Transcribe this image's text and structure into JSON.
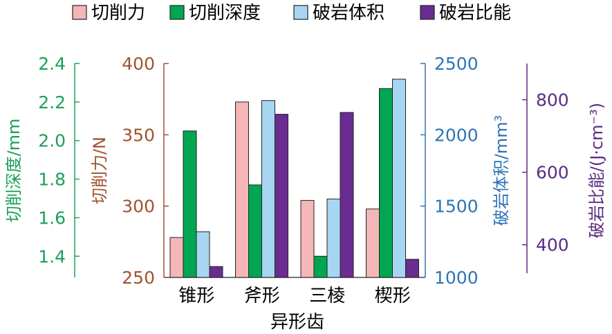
{
  "chart_data": {
    "type": "bar",
    "xlabel": "异形齿",
    "categories": [
      "锥形",
      "斧形",
      "三棱",
      "楔形"
    ],
    "legend_position": "top",
    "grid": false,
    "series": [
      {
        "name": "切削力",
        "axis": "force",
        "color": "#f4b6b6",
        "values": [
          278,
          373,
          304,
          298
        ]
      },
      {
        "name": "切削深度",
        "axis": "depth",
        "color": "#00a651",
        "values": [
          2.05,
          1.77,
          1.4,
          2.27
        ]
      },
      {
        "name": "破岩体积",
        "axis": "volume",
        "color": "#a6d6f2",
        "values": [
          1320,
          2240,
          1550,
          2390
        ]
      },
      {
        "name": "破岩比能",
        "axis": "energy",
        "color": "#6a2c91",
        "values": [
          340,
          760,
          765,
          360
        ]
      }
    ],
    "axes": {
      "depth": {
        "label": "切削深度/mm",
        "color": "#1aa05a",
        "ylim": [
          1.29,
          2.4
        ],
        "ticks": [
          "1.4",
          "1.6",
          "1.8",
          "2.0",
          "2.2",
          "2.4"
        ]
      },
      "force": {
        "label": "切削力/N",
        "color": "#a0522d",
        "ylim": [
          250,
          400
        ],
        "ticks": [
          "250",
          "300",
          "350",
          "400"
        ]
      },
      "volume": {
        "label": "破岩体积/mm³",
        "color": "#2e74b5",
        "ylim": [
          1000,
          2500
        ],
        "ticks": [
          "1000",
          "1500",
          "2000",
          "2500"
        ]
      },
      "energy": {
        "label": "破岩比能/(J·cm⁻³)",
        "color": "#5b2c83",
        "ylim": [
          310,
          900
        ],
        "ticks": [
          "400",
          "600",
          "800"
        ]
      }
    }
  }
}
